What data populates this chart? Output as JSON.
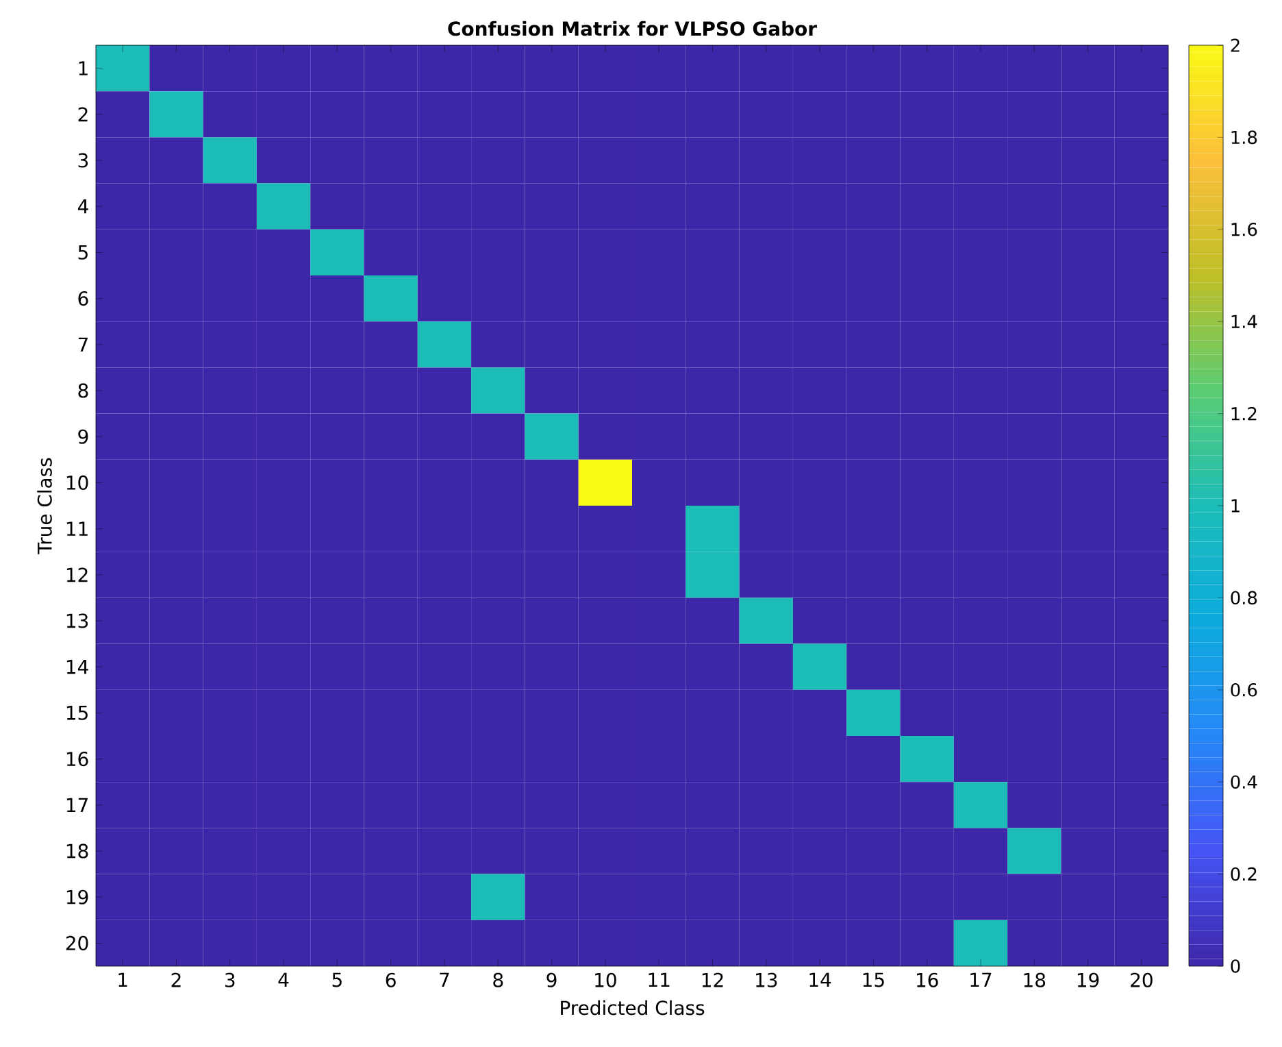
{
  "chart_data": {
    "type": "heatmap",
    "title": "Confusion Matrix for VLPSO Gabor",
    "xlabel": "Predicted Class",
    "ylabel": "True Class",
    "categories": [
      "1",
      "2",
      "3",
      "4",
      "5",
      "6",
      "7",
      "8",
      "9",
      "10",
      "11",
      "12",
      "13",
      "14",
      "15",
      "16",
      "17",
      "18",
      "19",
      "20"
    ],
    "y_categories": [
      "1",
      "2",
      "3",
      "4",
      "5",
      "6",
      "7",
      "8",
      "9",
      "10",
      "11",
      "12",
      "13",
      "14",
      "15",
      "16",
      "17",
      "18",
      "19",
      "20"
    ],
    "cells": [
      [
        1,
        0,
        0,
        0,
        0,
        0,
        0,
        0,
        0,
        0,
        0,
        0,
        0,
        0,
        0,
        0,
        0,
        0,
        0,
        0
      ],
      [
        0,
        1,
        0,
        0,
        0,
        0,
        0,
        0,
        0,
        0,
        0,
        0,
        0,
        0,
        0,
        0,
        0,
        0,
        0,
        0
      ],
      [
        0,
        0,
        1,
        0,
        0,
        0,
        0,
        0,
        0,
        0,
        0,
        0,
        0,
        0,
        0,
        0,
        0,
        0,
        0,
        0
      ],
      [
        0,
        0,
        0,
        1,
        0,
        0,
        0,
        0,
        0,
        0,
        0,
        0,
        0,
        0,
        0,
        0,
        0,
        0,
        0,
        0
      ],
      [
        0,
        0,
        0,
        0,
        1,
        0,
        0,
        0,
        0,
        0,
        0,
        0,
        0,
        0,
        0,
        0,
        0,
        0,
        0,
        0
      ],
      [
        0,
        0,
        0,
        0,
        0,
        1,
        0,
        0,
        0,
        0,
        0,
        0,
        0,
        0,
        0,
        0,
        0,
        0,
        0,
        0
      ],
      [
        0,
        0,
        0,
        0,
        0,
        0,
        1,
        0,
        0,
        0,
        0,
        0,
        0,
        0,
        0,
        0,
        0,
        0,
        0,
        0
      ],
      [
        0,
        0,
        0,
        0,
        0,
        0,
        0,
        1,
        0,
        0,
        0,
        0,
        0,
        0,
        0,
        0,
        0,
        0,
        0,
        0
      ],
      [
        0,
        0,
        0,
        0,
        0,
        0,
        0,
        0,
        1,
        0,
        0,
        0,
        0,
        0,
        0,
        0,
        0,
        0,
        0,
        0
      ],
      [
        0,
        0,
        0,
        0,
        0,
        0,
        0,
        0,
        0,
        2,
        0,
        0,
        0,
        0,
        0,
        0,
        0,
        0,
        0,
        0
      ],
      [
        0,
        0,
        0,
        0,
        0,
        0,
        0,
        0,
        0,
        0,
        0,
        1,
        0,
        0,
        0,
        0,
        0,
        0,
        0,
        0
      ],
      [
        0,
        0,
        0,
        0,
        0,
        0,
        0,
        0,
        0,
        0,
        0,
        1,
        0,
        0,
        0,
        0,
        0,
        0,
        0,
        0
      ],
      [
        0,
        0,
        0,
        0,
        0,
        0,
        0,
        0,
        0,
        0,
        0,
        0,
        1,
        0,
        0,
        0,
        0,
        0,
        0,
        0
      ],
      [
        0,
        0,
        0,
        0,
        0,
        0,
        0,
        0,
        0,
        0,
        0,
        0,
        0,
        1,
        0,
        0,
        0,
        0,
        0,
        0
      ],
      [
        0,
        0,
        0,
        0,
        0,
        0,
        0,
        0,
        0,
        0,
        0,
        0,
        0,
        0,
        1,
        0,
        0,
        0,
        0,
        0
      ],
      [
        0,
        0,
        0,
        0,
        0,
        0,
        0,
        0,
        0,
        0,
        0,
        0,
        0,
        0,
        0,
        1,
        0,
        0,
        0,
        0
      ],
      [
        0,
        0,
        0,
        0,
        0,
        0,
        0,
        0,
        0,
        0,
        0,
        0,
        0,
        0,
        0,
        0,
        1,
        0,
        0,
        0
      ],
      [
        0,
        0,
        0,
        0,
        0,
        0,
        0,
        0,
        0,
        0,
        0,
        0,
        0,
        0,
        0,
        0,
        0,
        1,
        0,
        0
      ],
      [
        0,
        0,
        0,
        0,
        0,
        0,
        0,
        1,
        0,
        0,
        0,
        0,
        0,
        0,
        0,
        0,
        0,
        0,
        0,
        0
      ],
      [
        0,
        0,
        0,
        0,
        0,
        0,
        0,
        0,
        0,
        0,
        0,
        0,
        0,
        0,
        0,
        0,
        1,
        0,
        0,
        0
      ]
    ],
    "clim": [
      0,
      2
    ],
    "cticks": [
      0,
      0.2,
      0.4,
      0.6,
      0.8,
      1,
      1.2,
      1.4,
      1.6,
      1.8,
      2
    ]
  }
}
